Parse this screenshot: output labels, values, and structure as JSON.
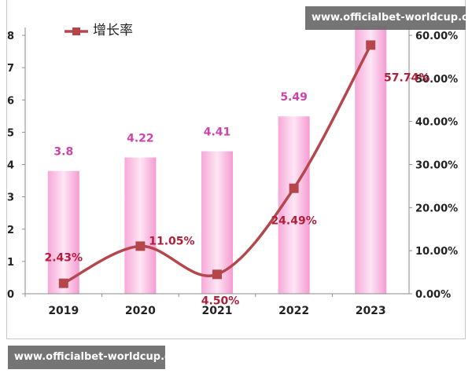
{
  "watermark_top": "www.officialbet-worldcup.com",
  "watermark_bottom": "www.officialbet-worldcup.com",
  "chart_data": {
    "type": "bar",
    "categories": [
      "2019",
      "2020",
      "2021",
      "2022",
      "2023"
    ],
    "legend": {
      "visible_text": "增长率",
      "placement": "top-left"
    },
    "series": [
      {
        "type": "bar",
        "values": [
          3.8,
          4.22,
          4.41,
          5.49,
          8.3
        ],
        "labels": [
          "3.8",
          "4.22",
          "4.41",
          "5.49",
          ""
        ],
        "color": "#f59bd2",
        "label_color": "#cc44aa",
        "axis": "left"
      },
      {
        "name": "增长率",
        "type": "line",
        "values": [
          2.43,
          11.05,
          4.5,
          24.49,
          57.74
        ],
        "labels": [
          "2.43%",
          "11.05%",
          "4.50%",
          "24.49%",
          "57.74%"
        ],
        "color": "#b5474c",
        "label_color": "#b01e3a",
        "axis": "right"
      }
    ],
    "y_left": {
      "ylim": [
        0,
        8
      ],
      "ticks": [
        "0",
        "1",
        "2",
        "3",
        "4",
        "5",
        "6",
        "7",
        "8"
      ]
    },
    "y_right": {
      "ylim": [
        0,
        60
      ],
      "ticks": [
        "0.00%",
        "10.00%",
        "20.00%",
        "30.00%",
        "40.00%",
        "50.00%",
        "60.00%"
      ]
    },
    "grid": false
  }
}
